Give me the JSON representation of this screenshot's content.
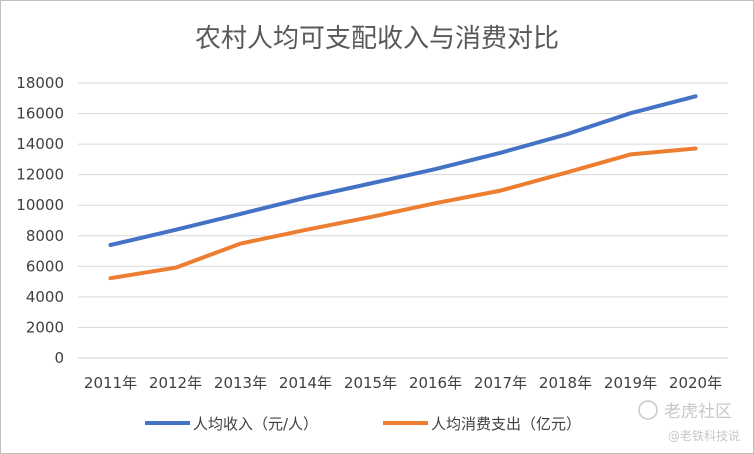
{
  "chart_data": {
    "type": "line",
    "title": "农村人均可支配收入与消费对比",
    "categories": [
      "2011年",
      "2012年",
      "2013年",
      "2014年",
      "2015年",
      "2016年",
      "2017年",
      "2018年",
      "2019年",
      "2020年"
    ],
    "series": [
      {
        "name": "人均收入（元/人）",
        "color": "#4472c4",
        "values": [
          7394,
          8389,
          9430,
          10489,
          11422,
          12363,
          13432,
          14617,
          16021,
          17131
        ]
      },
      {
        "name": "人均消费支出（亿元）",
        "color": "#ed7d31",
        "values": [
          5221,
          5908,
          7485,
          8383,
          9223,
          10130,
          10955,
          12124,
          13328,
          13713
        ]
      }
    ],
    "ylim": [
      0,
      18000
    ],
    "yticks": [
      "0",
      "2000",
      "4000",
      "6000",
      "8000",
      "10000",
      "12000",
      "14000",
      "16000",
      "18000"
    ],
    "grid": true,
    "legend": "bottom",
    "xlabel": "",
    "ylabel": ""
  },
  "watermark": {
    "line1": "老虎社区",
    "line2": "@老铁科技说"
  }
}
